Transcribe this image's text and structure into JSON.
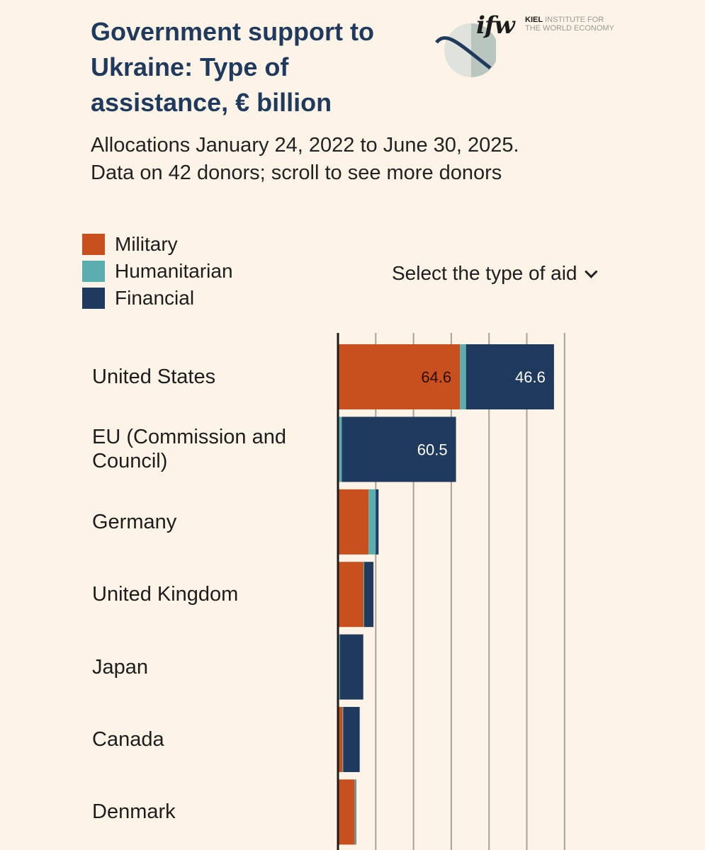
{
  "header": {
    "title": "Government support to Ukraine: Type of assistance, € billion",
    "subtitle": "Allocations January 24, 2022 to June 30, 2025. Data on 42 donors; scroll to see more donors",
    "logo_text": "ifw",
    "logo_org_bold": "KIEL",
    "logo_org_line1": "INSTITUTE FOR",
    "logo_org_line2": "THE WORLD ECONOMY"
  },
  "controls": {
    "select_label": "Select the type of aid"
  },
  "colors": {
    "Military": "#c8501e",
    "Humanitarian": "#5aaeb0",
    "Financial": "#1f3a5c",
    "background": "#fdf4e7"
  },
  "chart_data": {
    "type": "bar",
    "orientation": "horizontal",
    "stacked": true,
    "title": "Government support to Ukraine: Type of assistance, € billion",
    "categories": [
      "United States",
      "EU (Commission and Council)",
      "Germany",
      "United Kingdom",
      "Japan",
      "Canada",
      "Denmark"
    ],
    "series": [
      {
        "name": "Military",
        "values": [
          64.6,
          0,
          16.2,
          13.5,
          0.1,
          2.4,
          8.9
        ],
        "labels": [
          "64.6",
          "",
          "",
          "",
          "",
          "",
          ""
        ]
      },
      {
        "name": "Humanitarian",
        "values": [
          3.2,
          2.0,
          3.8,
          0.4,
          0.9,
          0.4,
          0.6
        ],
        "labels": [
          "",
          "",
          "",
          "",
          "",
          "",
          ""
        ]
      },
      {
        "name": "Financial",
        "values": [
          46.6,
          60.5,
          1.5,
          4.9,
          12.4,
          8.7,
          0.2
        ],
        "labels": [
          "46.6",
          "60.5",
          "",
          "",
          "",
          "",
          ""
        ]
      }
    ],
    "xlim": [
      0,
      120
    ],
    "gridlines": [
      20,
      40,
      60,
      80,
      100,
      120
    ],
    "grid": true,
    "legend": [
      "Military",
      "Humanitarian",
      "Financial"
    ],
    "legend_position": "top-left"
  }
}
